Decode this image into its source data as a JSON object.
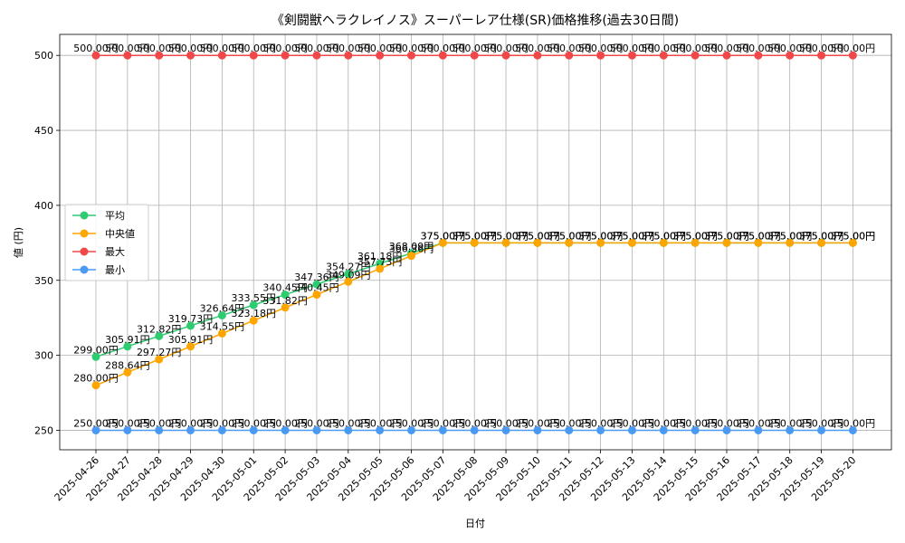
{
  "chart_data": {
    "type": "line",
    "title": "《剣闘獣ヘラクレイノス》スーパーレア仕様(SR)価格推移(過去30日間)",
    "xlabel": "日付",
    "ylabel": "値 (円)",
    "ylim": [
      237,
      514
    ],
    "yticks": [
      250,
      300,
      350,
      400,
      450,
      500
    ],
    "grid": true,
    "legend_position": "center-left",
    "categories": [
      "2025-04-26",
      "2025-04-27",
      "2025-04-28",
      "2025-04-29",
      "2025-04-30",
      "2025-05-01",
      "2025-05-02",
      "2025-05-03",
      "2025-05-04",
      "2025-05-05",
      "2025-05-06",
      "2025-05-07",
      "2025-05-08",
      "2025-05-09",
      "2025-05-10",
      "2025-05-11",
      "2025-05-12",
      "2025-05-13",
      "2025-05-14",
      "2025-05-15",
      "2025-05-16",
      "2025-05-17",
      "2025-05-18",
      "2025-05-19",
      "2025-05-20"
    ],
    "series": [
      {
        "name": "平均",
        "color": "#2ecc71",
        "values": [
          299.0,
          305.91,
          312.82,
          319.73,
          326.64,
          333.55,
          340.45,
          347.36,
          354.27,
          361.18,
          368.09,
          375.0,
          375.0,
          375.0,
          375.0,
          375.0,
          375.0,
          375.0,
          375.0,
          375.0,
          375.0,
          375.0,
          375.0,
          375.0,
          375.0
        ]
      },
      {
        "name": "中央値",
        "color": "#ffa500",
        "values": [
          280.0,
          288.64,
          297.27,
          305.91,
          314.55,
          323.18,
          331.82,
          340.45,
          349.09,
          357.73,
          366.36,
          375.0,
          375.0,
          375.0,
          375.0,
          375.0,
          375.0,
          375.0,
          375.0,
          375.0,
          375.0,
          375.0,
          375.0,
          375.0,
          375.0
        ]
      },
      {
        "name": "最大",
        "color": "#f04848",
        "values": [
          500,
          500,
          500,
          500,
          500,
          500,
          500,
          500,
          500,
          500,
          500,
          500,
          500,
          500,
          500,
          500,
          500,
          500,
          500,
          500,
          500,
          500,
          500,
          500,
          500
        ]
      },
      {
        "name": "最小",
        "color": "#4a9af5",
        "values": [
          250,
          250,
          250,
          250,
          250,
          250,
          250,
          250,
          250,
          250,
          250,
          250,
          250,
          250,
          250,
          250,
          250,
          250,
          250,
          250,
          250,
          250,
          250,
          250,
          250
        ]
      }
    ],
    "value_suffix": "円"
  }
}
